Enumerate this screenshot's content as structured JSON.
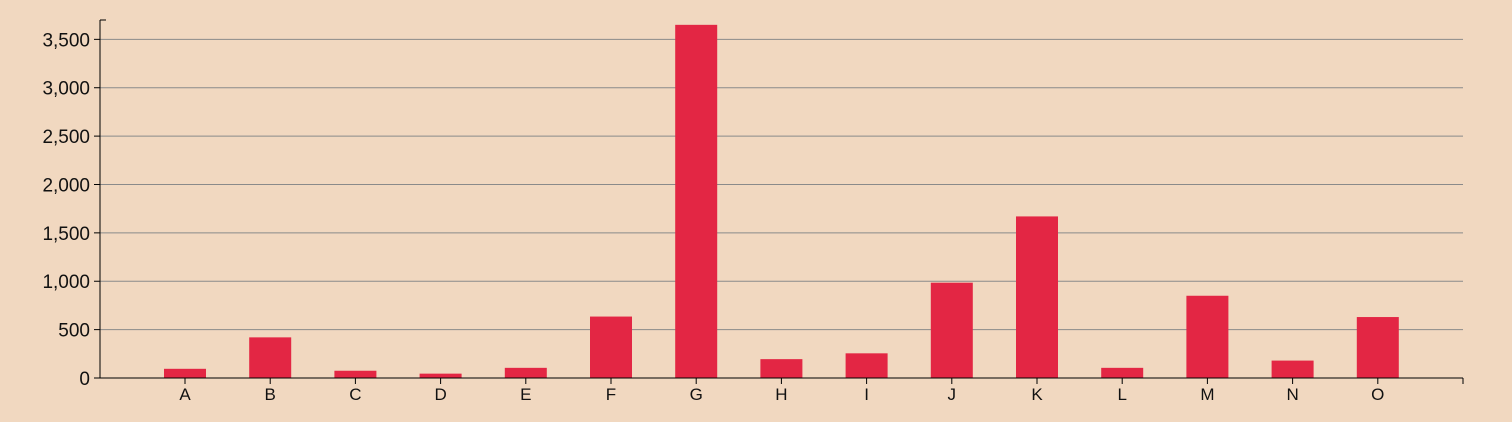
{
  "chart_data": {
    "type": "bar",
    "categories": [
      "A",
      "B",
      "C",
      "D",
      "E",
      "F",
      "G",
      "H",
      "I",
      "J",
      "K",
      "L",
      "M",
      "N",
      "O"
    ],
    "series": [
      {
        "values": [
          95,
          420,
          75,
          45,
          105,
          635,
          3650,
          195,
          255,
          985,
          1670,
          105,
          850,
          180,
          630
        ]
      }
    ],
    "ylim": [
      0,
      3700
    ],
    "yticks": [
      0,
      500,
      1000,
      1500,
      2000,
      2500,
      3000,
      3500
    ],
    "ytick_labels": [
      "0",
      "500",
      "1,000",
      "1,500",
      "2,000",
      "2,500",
      "3,000",
      "3,500"
    ],
    "xlabel": "",
    "ylabel": "",
    "title": "",
    "grid": true,
    "legend": false,
    "colors": {
      "background": "#f1d8c0",
      "bar": "#e32644",
      "grid": "#8a8a8a",
      "axis": "#000000"
    }
  }
}
